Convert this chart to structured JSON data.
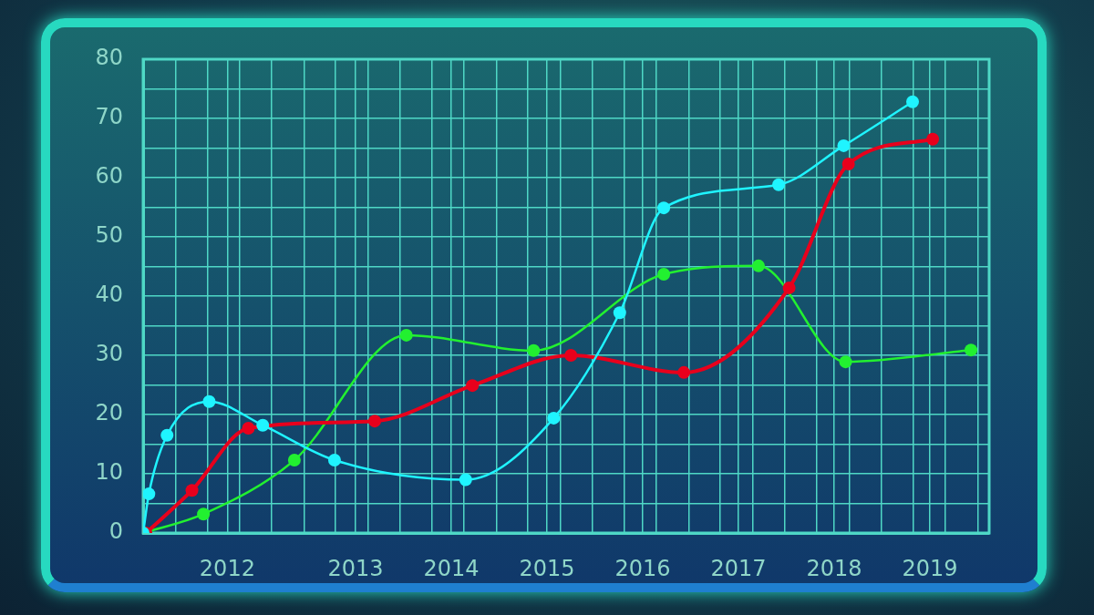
{
  "chart_data": {
    "type": "line",
    "xlim": [
      2010.78,
      2019.62
    ],
    "ylim": [
      0,
      80
    ],
    "xticks": [
      {
        "value": 2011.66,
        "label": "2012"
      },
      {
        "value": 2013,
        "label": "2013"
      },
      {
        "value": 2014,
        "label": "2014"
      },
      {
        "value": 2015,
        "label": "2015"
      },
      {
        "value": 2016,
        "label": "2016"
      },
      {
        "value": 2017,
        "label": "2017"
      },
      {
        "value": 2018,
        "label": "2018"
      },
      {
        "value": 2019,
        "label": "2019"
      },
      {
        "value": 2010.78,
        "label": null
      },
      {
        "value": 2011.12,
        "label": null
      },
      {
        "value": 2011.45,
        "label": null
      },
      {
        "value": 2011.79,
        "label": null
      },
      {
        "value": 2012.12,
        "label": null
      },
      {
        "value": 2012.46,
        "label": null
      },
      {
        "value": 2012.79,
        "label": null
      },
      {
        "value": 2013.13,
        "label": null
      },
      {
        "value": 2013.46,
        "label": null
      },
      {
        "value": 2013.8,
        "label": null
      },
      {
        "value": 2014.13,
        "label": null
      },
      {
        "value": 2014.47,
        "label": null
      },
      {
        "value": 2014.8,
        "label": null
      },
      {
        "value": 2015.14,
        "label": null
      },
      {
        "value": 2015.47,
        "label": null
      },
      {
        "value": 2015.81,
        "label": null
      },
      {
        "value": 2016.14,
        "label": null
      },
      {
        "value": 2016.48,
        "label": null
      },
      {
        "value": 2016.81,
        "label": null
      },
      {
        "value": 2017.15,
        "label": null
      },
      {
        "value": 2017.48,
        "label": null
      },
      {
        "value": 2017.82,
        "label": null
      },
      {
        "value": 2018.16,
        "label": null
      },
      {
        "value": 2018.49,
        "label": null
      },
      {
        "value": 2018.83,
        "label": null
      },
      {
        "value": 2019.16,
        "label": null
      },
      {
        "value": 2019.5,
        "label": null
      }
    ],
    "yticks": [
      0,
      {
        "value": 5,
        "label": null
      },
      10,
      {
        "value": 15,
        "label": null
      },
      20,
      {
        "value": 25,
        "label": null
      },
      30,
      {
        "value": 35,
        "label": null
      },
      40,
      {
        "value": 45,
        "label": null
      },
      50,
      {
        "value": 55,
        "label": null
      },
      60,
      {
        "value": 65,
        "label": null
      },
      70,
      {
        "value": 75,
        "label": null
      },
      80
    ],
    "grid": true,
    "legend": false,
    "marker": "circle",
    "line_style": "solid",
    "series": [
      {
        "color": "#1ff4ff",
        "x": [
          2010.78,
          2010.84,
          2011.03,
          2011.47,
          2012.03,
          2012.78,
          2014.15,
          2015.07,
          2015.76,
          2016.22,
          2017.42,
          2018.1,
          2018.82
        ],
        "values": [
          0,
          6.6,
          16.5,
          22.2,
          18.2,
          12.3,
          9,
          19.4,
          37.2,
          54.9,
          58.8,
          65.4,
          72.8
        ]
      },
      {
        "color": "#e8001c",
        "x": [
          2010.81,
          2011.29,
          2011.88,
          2013.2,
          2014.22,
          2015.25,
          2016.43,
          2017.53,
          2018.15,
          2019.03
        ],
        "values": [
          0,
          7.2,
          17.7,
          18.9,
          24.9,
          30,
          27.1,
          41.4,
          62.3,
          66.5
        ]
      },
      {
        "color": "#22f030",
        "x": [
          2010.78,
          2011.41,
          2012.36,
          2013.53,
          2014.86,
          2016.22,
          2017.21,
          2018.12,
          2019.43
        ],
        "values": [
          0,
          3.2,
          12.3,
          33.4,
          30.8,
          43.7,
          45.1,
          28.9,
          30.9
        ]
      }
    ]
  }
}
